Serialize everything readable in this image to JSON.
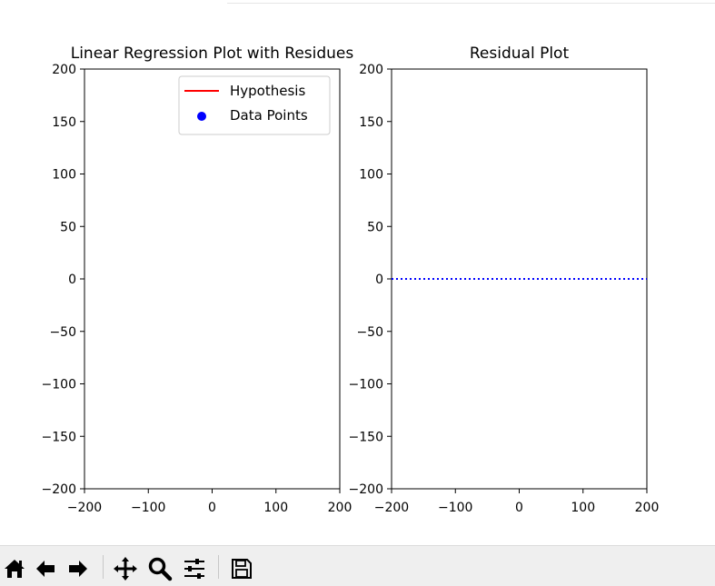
{
  "chart_data": [
    {
      "type": "line",
      "title": "Linear Regression Plot with Residues",
      "xlim": [
        -200,
        200
      ],
      "ylim": [
        -200,
        200
      ],
      "xticks": [
        -200,
        -100,
        0,
        100,
        200
      ],
      "yticks": [
        -200,
        -150,
        -100,
        -50,
        0,
        50,
        100,
        150,
        200
      ],
      "xticklabels": [
        "−200",
        "−100",
        "0",
        "100",
        "200"
      ],
      "yticklabels": [
        "−200",
        "−150",
        "−100",
        "−50",
        "0",
        "50",
        "100",
        "150",
        "200"
      ],
      "legend_placement": "top-right",
      "series": [
        {
          "name": "Hypothesis",
          "kind": "line",
          "color": "#ff0000",
          "x": [],
          "y": []
        },
        {
          "name": "Data Points",
          "kind": "scatter",
          "color": "#0000ff",
          "x": [],
          "y": []
        }
      ]
    },
    {
      "type": "line",
      "title": "Residual Plot",
      "xlim": [
        -200,
        200
      ],
      "ylim": [
        -200,
        200
      ],
      "xticks": [
        -200,
        -100,
        0,
        100,
        200
      ],
      "yticks": [
        -200,
        -150,
        -100,
        -50,
        0,
        50,
        100,
        150,
        200
      ],
      "xticklabels": [
        "−200",
        "−100",
        "0",
        "100",
        "200"
      ],
      "yticklabels": [
        "−200",
        "−150",
        "−100",
        "−50",
        "0",
        "50",
        "100",
        "150",
        "200"
      ],
      "series": [
        {
          "kind": "line",
          "style": "dotted",
          "color": "#0000ff",
          "x": [
            -200,
            200
          ],
          "y": [
            0,
            0
          ]
        }
      ]
    }
  ],
  "toolbar": {
    "buttons": [
      {
        "name": "home-button",
        "icon": "home-icon"
      },
      {
        "name": "back-button",
        "icon": "arrow-left-icon"
      },
      {
        "name": "forward-button",
        "icon": "arrow-right-icon"
      },
      {
        "name": "pan-button",
        "icon": "move-icon"
      },
      {
        "name": "zoom-button",
        "icon": "magnifier-icon"
      },
      {
        "name": "configure-subplots-button",
        "icon": "sliders-icon"
      },
      {
        "name": "save-button",
        "icon": "floppy-disk-icon"
      }
    ]
  }
}
